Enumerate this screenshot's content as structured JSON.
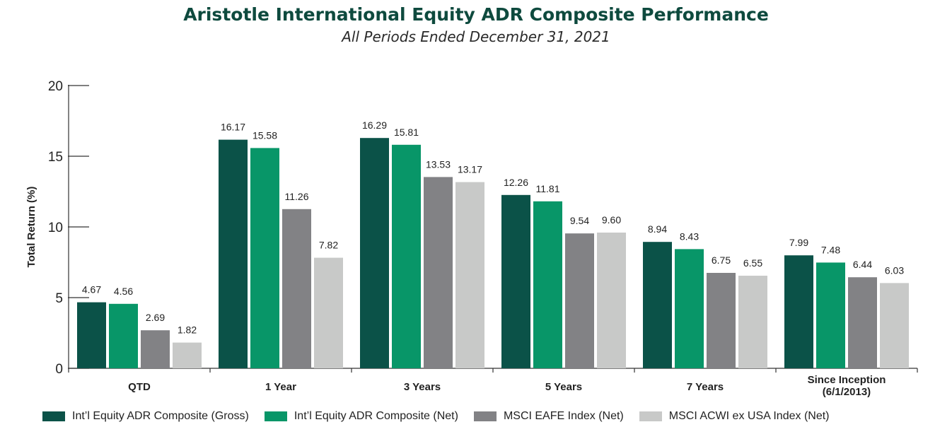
{
  "colors": {
    "title": "#0e4a3e",
    "subtitle": "#2a2a2a",
    "axis": "#333333",
    "text": "#222222"
  },
  "chart_data": {
    "type": "bar",
    "title": "Aristotle International Equity ADR Composite Performance",
    "subtitle": "All Periods Ended December 31, 2021",
    "ylabel": "Total Return (%)",
    "xlabel": "",
    "ylim": [
      0,
      20
    ],
    "yticks": [
      0,
      5,
      10,
      15,
      20
    ],
    "grid": false,
    "legend_position": "bottom",
    "categories": [
      "QTD",
      "1 Year",
      "3 Years",
      "5 Years",
      "7 Years",
      "Since Inception (6/1/2013)"
    ],
    "category_lines": [
      [
        "QTD"
      ],
      [
        "1 Year"
      ],
      [
        "3 Years"
      ],
      [
        "5 Years"
      ],
      [
        "7 Years"
      ],
      [
        "Since Inception",
        "(6/1/2013)"
      ]
    ],
    "series": [
      {
        "name": "Int’l Equity ADR Composite (Gross)",
        "color": "#0b5248",
        "values": [
          4.67,
          16.17,
          16.29,
          12.26,
          8.94,
          7.99
        ],
        "labels": [
          "4.67",
          "16.17",
          "16.29",
          "12.26",
          "8.94",
          "7.99"
        ]
      },
      {
        "name": "Int’l Equity ADR Composite (Net)",
        "color": "#089668",
        "values": [
          4.56,
          15.58,
          15.81,
          11.81,
          8.43,
          7.48
        ],
        "labels": [
          "4.56",
          "15.58",
          "15.81",
          "11.81",
          "8.43",
          "7.48"
        ]
      },
      {
        "name": "MSCI EAFE Index (Net)",
        "color": "#828285",
        "values": [
          2.69,
          11.26,
          13.53,
          9.54,
          6.75,
          6.44
        ],
        "labels": [
          "2.69",
          "11.26",
          "13.53",
          "9.54",
          "6.75",
          "6.44"
        ]
      },
      {
        "name": "MSCI ACWI ex USA Index (Net)",
        "color": "#c8c9c8",
        "values": [
          1.82,
          7.82,
          13.17,
          9.6,
          6.55,
          6.03
        ],
        "labels": [
          "1.82",
          "7.82",
          "13.17",
          "9.60",
          "6.55",
          "6.03"
        ]
      }
    ]
  }
}
